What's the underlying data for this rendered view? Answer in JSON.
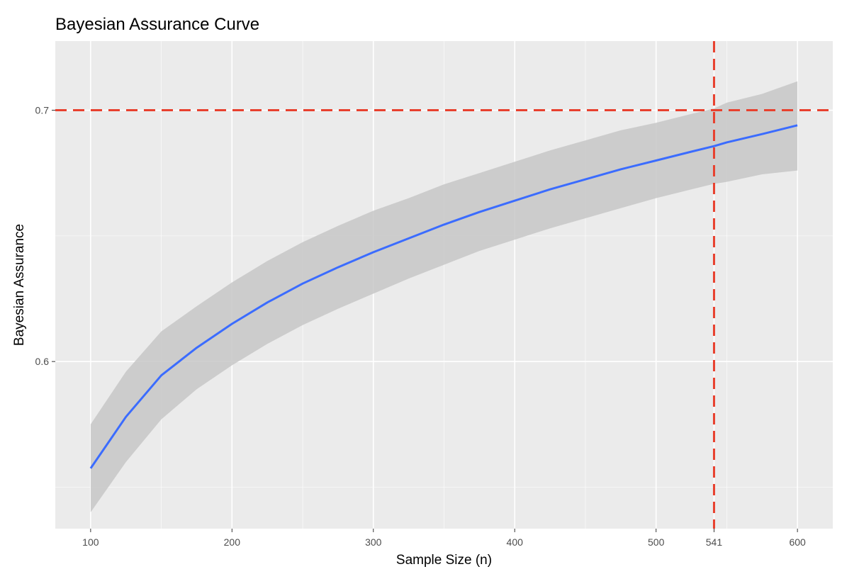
{
  "chart_data": {
    "type": "line",
    "title": "Bayesian Assurance Curve",
    "xlabel": "Sample Size (n)",
    "ylabel": "Bayesian Assurance",
    "xlim": [
      75,
      625
    ],
    "ylim": [
      0.5335,
      0.7275
    ],
    "x_ticks": [
      100,
      200,
      300,
      400,
      500,
      541,
      600
    ],
    "x_tick_labels": [
      "100",
      "200",
      "300",
      "400",
      "500",
      "541",
      "600"
    ],
    "x_minor_gridlines": [
      150,
      250,
      350,
      450,
      550
    ],
    "y_ticks": [
      0.6,
      0.7
    ],
    "y_tick_labels": [
      "0.6",
      "0.7"
    ],
    "y_minor_gridlines": [
      0.55,
      0.65
    ],
    "grid": true,
    "legend": "none",
    "series": [
      {
        "x": [
          100,
          125,
          150,
          175,
          200,
          225,
          250,
          275,
          300,
          325,
          350,
          375,
          400,
          425,
          450,
          475,
          500,
          525,
          541,
          550,
          575,
          600
        ],
        "values": [
          0.5575,
          0.578,
          0.5945,
          0.6055,
          0.615,
          0.6235,
          0.631,
          0.6375,
          0.6435,
          0.649,
          0.6545,
          0.6595,
          0.664,
          0.6685,
          0.6725,
          0.6765,
          0.68,
          0.6835,
          0.6857,
          0.6872,
          0.6905,
          0.694
        ],
        "lower": [
          0.54,
          0.56,
          0.577,
          0.589,
          0.5985,
          0.607,
          0.6145,
          0.621,
          0.627,
          0.633,
          0.6385,
          0.644,
          0.6485,
          0.653,
          0.657,
          0.661,
          0.665,
          0.6685,
          0.6707,
          0.6715,
          0.6745,
          0.676
        ],
        "upper": [
          0.575,
          0.596,
          0.612,
          0.622,
          0.6315,
          0.64,
          0.6475,
          0.654,
          0.66,
          0.665,
          0.6705,
          0.675,
          0.6795,
          0.684,
          0.688,
          0.692,
          0.695,
          0.6985,
          0.7007,
          0.703,
          0.7065,
          0.7115
        ]
      }
    ],
    "reference_lines": [
      {
        "orientation": "horizontal",
        "value": 0.7
      },
      {
        "orientation": "vertical",
        "value": 541
      }
    ],
    "colors": {
      "line": "#3b6cff",
      "band": "#c7c7c7",
      "reference": "#e8402e",
      "panel": "#ebebeb",
      "grid": "#ffffff"
    }
  }
}
